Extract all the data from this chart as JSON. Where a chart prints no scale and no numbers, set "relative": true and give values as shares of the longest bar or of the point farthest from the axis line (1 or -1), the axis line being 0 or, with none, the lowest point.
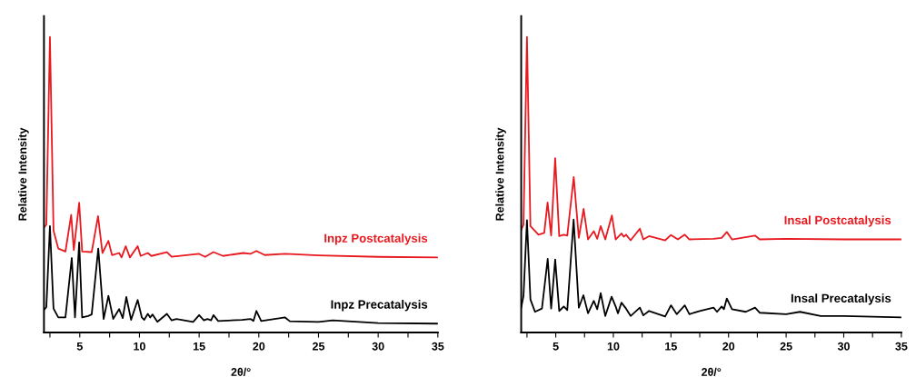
{
  "chart_data": [
    {
      "type": "line",
      "relative": true,
      "xlabel": "2θ/°",
      "ylabel": "Relative Intensity",
      "xlim": [
        2,
        35
      ],
      "xticks": [
        {
          "value": 2.5,
          "label": null
        },
        5,
        {
          "value": 7.5,
          "label": null
        },
        10,
        {
          "value": 12.5,
          "label": null
        },
        15,
        {
          "value": 17.5,
          "label": null
        },
        20,
        {
          "value": 22.5,
          "label": null
        },
        25,
        {
          "value": 27.5,
          "label": null
        },
        30,
        {
          "value": 32.5,
          "label": null
        },
        35
      ],
      "grid": false,
      "legend": false,
      "marker": "none",
      "line_style": "solid",
      "series": [
        {
          "name": "Inpz Postcatalysis",
          "color": "#e8191f",
          "x": [
            2,
            2.2,
            2.5,
            2.8,
            3.2,
            3.8,
            4.28,
            4.5,
            4.95,
            5.2,
            6.0,
            6.53,
            6.9,
            7.4,
            7.7,
            8.3,
            8.5,
            8.85,
            9.2,
            9.85,
            10.1,
            10.7,
            11,
            12.3,
            12.7,
            15,
            15.5,
            16.2,
            17,
            18.7,
            19.3,
            19.8,
            20.5,
            22.2,
            25,
            30,
            35
          ],
          "values": [
            0.355,
            0.365,
            1.0,
            0.345,
            0.284,
            0.274,
            0.398,
            0.279,
            0.439,
            0.274,
            0.272,
            0.394,
            0.269,
            0.31,
            0.262,
            0.269,
            0.254,
            0.292,
            0.254,
            0.292,
            0.259,
            0.269,
            0.259,
            0.272,
            0.256,
            0.266,
            0.256,
            0.272,
            0.259,
            0.269,
            0.266,
            0.276,
            0.262,
            0.266,
            0.261,
            0.256,
            0.254
          ]
        },
        {
          "name": "Inpz Precatalysis",
          "color": "#000000",
          "x": [
            2,
            2.2,
            2.5,
            2.8,
            3.2,
            3.8,
            4.33,
            4.6,
            4.95,
            5.2,
            5.7,
            6.0,
            6.55,
            7.0,
            7.4,
            7.8,
            8.3,
            8.6,
            8.9,
            9.3,
            9.85,
            10.2,
            10.4,
            10.7,
            10.9,
            11.1,
            11.5,
            12.3,
            12.7,
            13.1,
            14.5,
            15,
            15.4,
            15.7,
            16,
            16.2,
            16.6,
            18.6,
            19.3,
            19.55,
            19.8,
            20.2,
            22.2,
            22.6,
            25,
            26.2,
            30,
            35
          ],
          "values": [
            0.076,
            0.086,
            0.36,
            0.081,
            0.051,
            0.051,
            0.252,
            0.051,
            0.305,
            0.051,
            0.056,
            0.061,
            0.284,
            0.046,
            0.124,
            0.046,
            0.079,
            0.049,
            0.12,
            0.043,
            0.11,
            0.051,
            0.043,
            0.063,
            0.051,
            0.061,
            0.036,
            0.063,
            0.041,
            0.046,
            0.036,
            0.059,
            0.041,
            0.046,
            0.041,
            0.059,
            0.039,
            0.043,
            0.046,
            0.039,
            0.073,
            0.039,
            0.051,
            0.038,
            0.036,
            0.041,
            0.032,
            0.03
          ]
        }
      ]
    },
    {
      "type": "line",
      "relative": true,
      "xlabel": "2θ/°",
      "ylabel": "Relative Intensity",
      "xlim": [
        2,
        35
      ],
      "xticks": [
        {
          "value": 2.5,
          "label": null
        },
        5,
        {
          "value": 7.5,
          "label": null
        },
        10,
        {
          "value": 12.5,
          "label": null
        },
        15,
        {
          "value": 17.5,
          "label": null
        },
        20,
        {
          "value": 22.5,
          "label": null
        },
        25,
        {
          "value": 27.5,
          "label": null
        },
        30,
        {
          "value": 32.5,
          "label": null
        },
        35
      ],
      "grid": false,
      "legend": false,
      "marker": "none",
      "line_style": "solid",
      "series": [
        {
          "name": "Insal Postcatalysis",
          "color": "#e8191f",
          "x": [
            2,
            2.2,
            2.5,
            2.8,
            3.5,
            4.0,
            4.29,
            4.6,
            4.95,
            5.3,
            5.7,
            6.0,
            6.56,
            7.0,
            7.42,
            7.8,
            8.3,
            8.6,
            8.9,
            9.3,
            9.87,
            10.2,
            10.7,
            10.9,
            11.1,
            11.5,
            12.3,
            12.6,
            13.1,
            14.5,
            15,
            15.6,
            16.2,
            16.6,
            18.7,
            19.4,
            19.85,
            20.3,
            22.3,
            22.7,
            25,
            30,
            35
          ],
          "values": [
            0.348,
            0.365,
            1.0,
            0.36,
            0.331,
            0.337,
            0.44,
            0.328,
            0.59,
            0.326,
            0.331,
            0.328,
            0.526,
            0.32,
            0.418,
            0.315,
            0.343,
            0.317,
            0.36,
            0.315,
            0.396,
            0.315,
            0.335,
            0.324,
            0.331,
            0.312,
            0.351,
            0.315,
            0.326,
            0.312,
            0.33,
            0.315,
            0.331,
            0.315,
            0.317,
            0.32,
            0.34,
            0.315,
            0.328,
            0.315,
            0.317,
            0.315,
            0.315
          ]
        },
        {
          "name": "Insal Precatalysis",
          "color": "#000000",
          "x": [
            2,
            2.2,
            2.5,
            2.8,
            3.2,
            3.8,
            4.3,
            4.6,
            4.95,
            5.3,
            5.7,
            6.0,
            6.55,
            7.0,
            7.4,
            7.8,
            8.3,
            8.6,
            8.9,
            9.3,
            9.85,
            10.2,
            10.4,
            10.7,
            11.1,
            11.5,
            12.3,
            12.6,
            13.1,
            14.5,
            15,
            15.5,
            16.2,
            16.6,
            17.5,
            18.7,
            19,
            19.4,
            19.6,
            19.85,
            20.3,
            21.5,
            22.3,
            22.7,
            25,
            26.2,
            28,
            30,
            35
          ],
          "values": [
            0.084,
            0.124,
            0.38,
            0.112,
            0.07,
            0.081,
            0.249,
            0.081,
            0.247,
            0.073,
            0.088,
            0.076,
            0.382,
            0.084,
            0.126,
            0.065,
            0.107,
            0.079,
            0.133,
            0.056,
            0.121,
            0.088,
            0.065,
            0.101,
            0.081,
            0.056,
            0.084,
            0.058,
            0.073,
            0.054,
            0.092,
            0.062,
            0.092,
            0.062,
            0.073,
            0.084,
            0.07,
            0.088,
            0.079,
            0.115,
            0.079,
            0.07,
            0.084,
            0.067,
            0.062,
            0.07,
            0.056,
            0.056,
            0.051
          ]
        }
      ]
    }
  ]
}
